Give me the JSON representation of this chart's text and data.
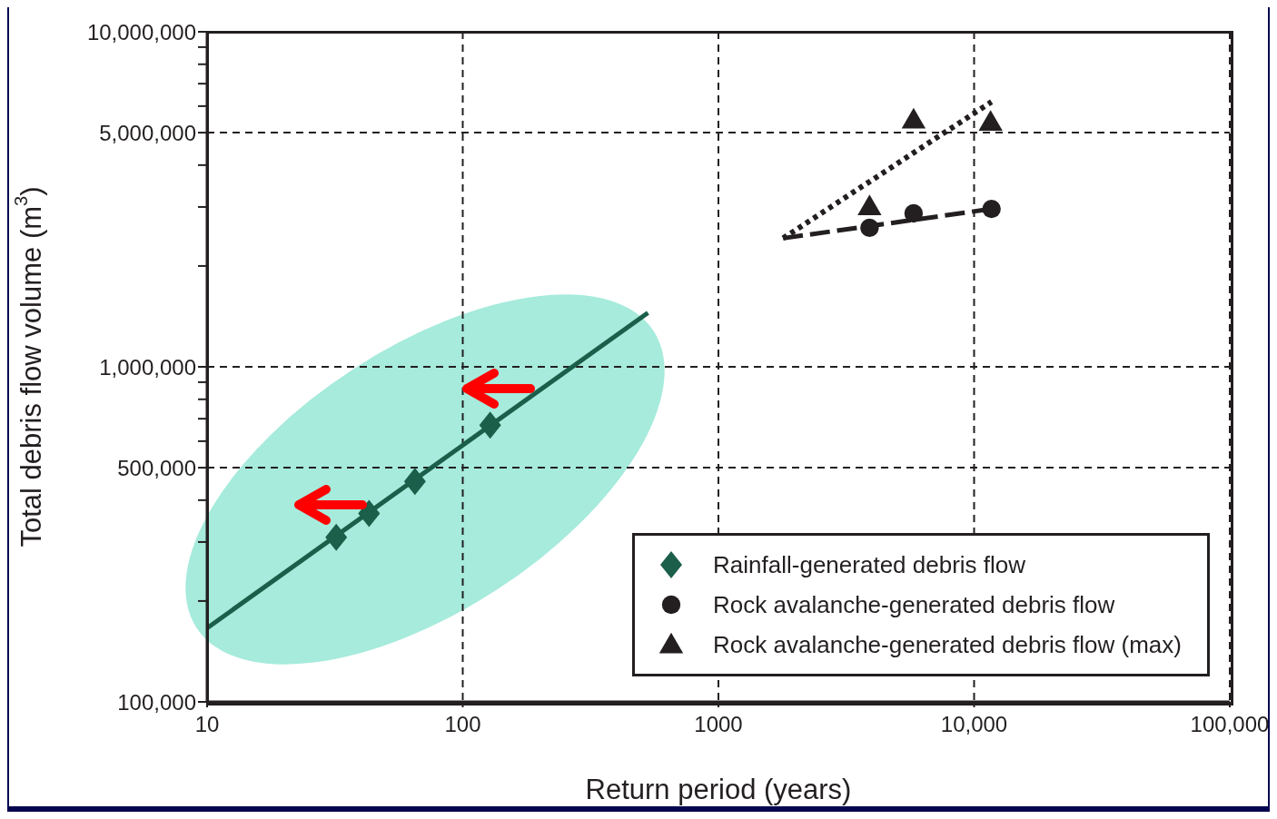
{
  "chart_data": {
    "type": "scatter",
    "xlabel": "Return period (years)",
    "ylabel": "Total debris flow volume (m$^{3}$)",
    "log": "xy",
    "grid": true,
    "legend": "bottom right",
    "xlim": [
      10,
      100000
    ],
    "ylim": [
      100000,
      10000000
    ],
    "xticks": [
      {
        "value": 10,
        "label": "10"
      },
      {
        "value": 100,
        "label": "100"
      },
      {
        "value": 1000,
        "label": "1000"
      },
      {
        "value": 10000,
        "label": "10,000"
      },
      {
        "value": 100000,
        "label": "100,000"
      }
    ],
    "yticks": [
      {
        "value": 100000,
        "label": "100,000"
      },
      {
        "value": 200000,
        "label": null
      },
      {
        "value": 300000,
        "label": null
      },
      {
        "value": 400000,
        "label": null
      },
      {
        "value": 500000,
        "label": "500,000"
      },
      {
        "value": 600000,
        "label": null
      },
      {
        "value": 700000,
        "label": null
      },
      {
        "value": 800000,
        "label": null
      },
      {
        "value": 900000,
        "label": null
      },
      {
        "value": 1000000,
        "label": "1,000,000"
      },
      {
        "value": 2000000,
        "label": null
      },
      {
        "value": 3000000,
        "label": null
      },
      {
        "value": 4000000,
        "label": null
      },
      {
        "value": 5000000,
        "label": "5,000,000"
      },
      {
        "value": 6000000,
        "label": null
      },
      {
        "value": 7000000,
        "label": null
      },
      {
        "value": 8000000,
        "label": null
      },
      {
        "value": 9000000,
        "label": null
      },
      {
        "value": 10000000,
        "label": "10,000,000"
      }
    ],
    "series": [
      {
        "name": "Rainfall-generated debris flow",
        "marker": "diamond",
        "color": "#1b5e4a",
        "x": [
          32,
          43,
          65,
          128
        ],
        "values": [
          310000,
          365000,
          455000,
          670000
        ]
      },
      {
        "type": "line",
        "line_style": "solid",
        "color": "#1b5e4a",
        "x": [
          10,
          530
        ],
        "values": [
          166000,
          1450000
        ]
      },
      {
        "name": "Rock avalanche-generated debris flow",
        "marker": "circle",
        "color": "#231f20",
        "x": [
          3900,
          5800,
          11700
        ],
        "values": [
          2600000,
          2870000,
          2960000
        ]
      },
      {
        "type": "line",
        "line_style": "dashed",
        "color": "#231f20",
        "x": [
          1790,
          11700
        ],
        "values": [
          2420000,
          2960000
        ]
      },
      {
        "name": "Rock avalanche-generated debris flow (max)",
        "marker": "triangle",
        "color": "#231f20",
        "x": [
          3900,
          5800,
          11600
        ],
        "values": [
          3010000,
          5460000,
          5380000
        ]
      },
      {
        "type": "line",
        "line_style": "dotted",
        "color": "#231f20",
        "x": [
          1790,
          11700
        ],
        "values": [
          2420000,
          6180000
        ]
      }
    ]
  }
}
